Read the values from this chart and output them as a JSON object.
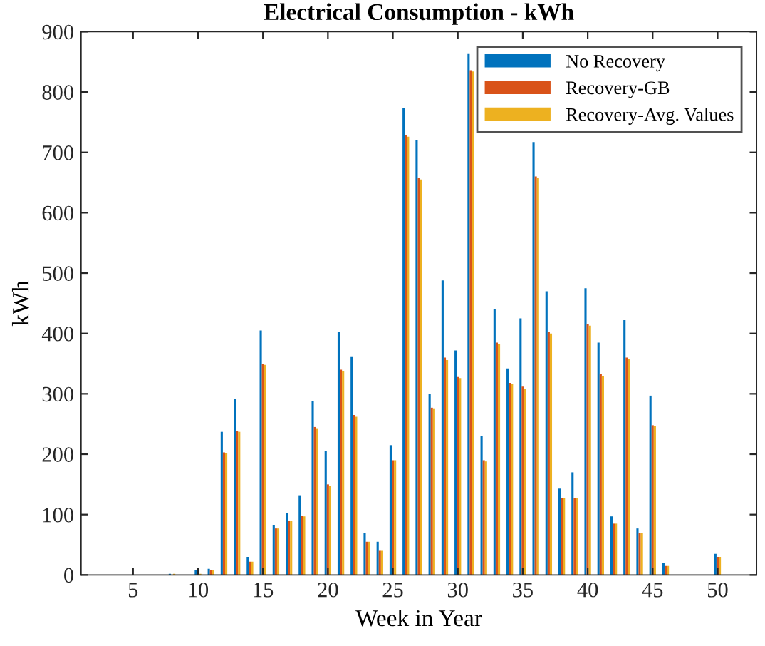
{
  "chart_data": {
    "type": "bar",
    "title": "Electrical Consumption - kWh",
    "xlabel": "Week in Year",
    "ylabel": "kWh",
    "x": [
      1,
      2,
      3,
      4,
      5,
      6,
      7,
      8,
      9,
      10,
      11,
      12,
      13,
      14,
      15,
      16,
      17,
      18,
      19,
      20,
      21,
      22,
      23,
      24,
      25,
      26,
      27,
      28,
      29,
      30,
      31,
      32,
      33,
      34,
      35,
      36,
      37,
      38,
      39,
      40,
      41,
      42,
      43,
      44,
      45,
      46,
      47,
      48,
      49,
      50,
      51,
      52
    ],
    "series": [
      {
        "name": "No Recovery",
        "color": "#0072bd",
        "values": [
          0,
          0,
          0,
          0,
          0,
          0,
          0,
          2,
          0,
          8,
          10,
          237,
          292,
          30,
          405,
          83,
          103,
          132,
          288,
          205,
          402,
          362,
          70,
          55,
          215,
          773,
          720,
          300,
          488,
          372,
          863,
          230,
          440,
          342,
          425,
          717,
          470,
          143,
          170,
          475,
          385,
          97,
          422,
          77,
          297,
          20,
          0,
          0,
          0,
          35,
          0,
          0
        ]
      },
      {
        "name": "Recovery-GB",
        "color": "#d95319",
        "values": [
          0,
          0,
          0,
          0,
          0,
          0,
          0,
          null,
          0,
          null,
          8,
          203,
          238,
          22,
          350,
          77,
          90,
          98,
          245,
          150,
          340,
          265,
          55,
          40,
          190,
          728,
          657,
          277,
          360,
          328,
          836,
          190,
          385,
          318,
          312,
          660,
          402,
          128,
          128,
          415,
          333,
          85,
          360,
          70,
          248,
          15,
          0,
          0,
          0,
          30,
          0,
          0
        ]
      },
      {
        "name": "Recovery-Avg. Values",
        "color": "#edb120",
        "values": [
          0,
          0,
          0,
          0,
          0,
          0,
          0,
          2,
          0,
          2,
          8,
          202,
          237,
          22,
          348,
          77,
          90,
          97,
          243,
          148,
          338,
          262,
          55,
          40,
          190,
          726,
          655,
          276,
          356,
          326,
          834,
          188,
          383,
          316,
          308,
          657,
          400,
          128,
          127,
          413,
          330,
          85,
          358,
          70,
          247,
          15,
          0,
          0,
          0,
          30,
          0,
          0
        ]
      }
    ],
    "xlim": [
      1,
      53
    ],
    "xticks": [
      5,
      10,
      15,
      20,
      25,
      30,
      35,
      40,
      45,
      50
    ],
    "ylim": [
      0,
      900
    ],
    "yticks": [
      0,
      100,
      200,
      300,
      400,
      500,
      600,
      700,
      800,
      900
    ],
    "grid": false,
    "legend": "top right"
  }
}
